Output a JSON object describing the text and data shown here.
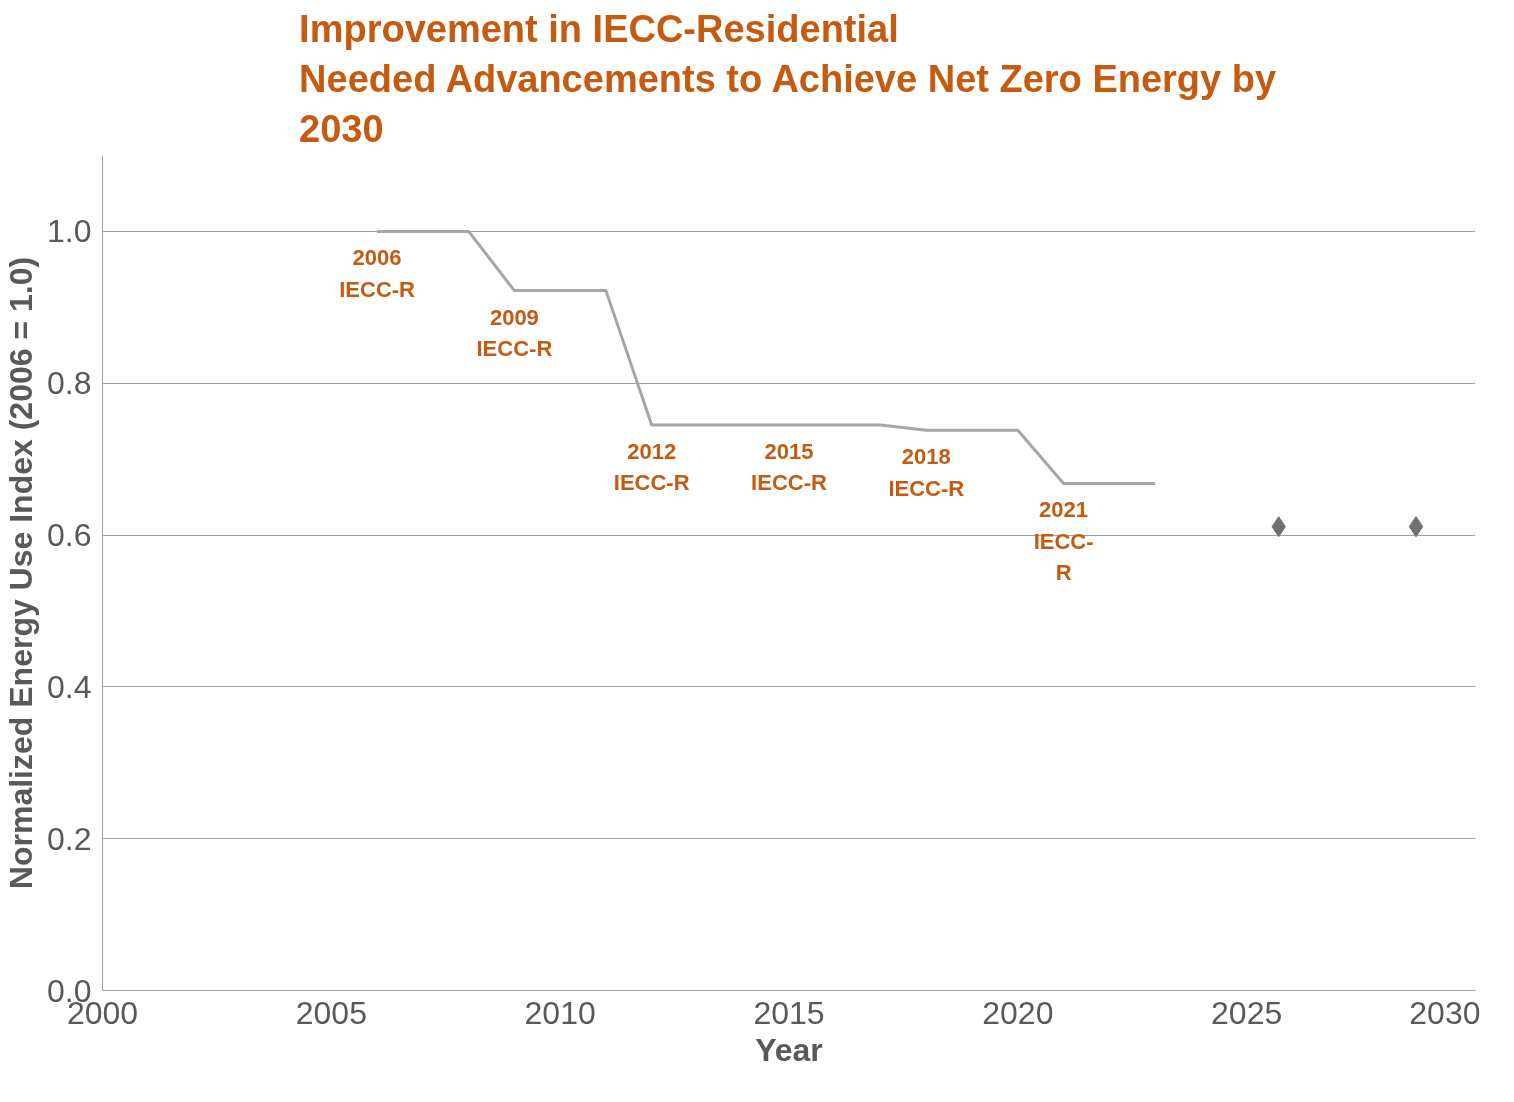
{
  "chart_data": {
    "type": "line",
    "title": "Improvement in IECC-Residential\nNeeded Advancements to Achieve Net Zero Energy by\n2030",
    "xlabel": "Year",
    "ylabel": "Normalized Energy Use Index (2006 = 1.0)",
    "series": [
      {
        "color": "#a6a6a6",
        "x": [
          2006,
          2008,
          2009,
          2011,
          2012,
          2017,
          2018,
          2020,
          2021,
          2023
        ],
        "values": [
          1.0,
          1.0,
          0.922,
          0.922,
          0.745,
          0.745,
          0.738,
          0.738,
          0.668,
          0.668
        ]
      },
      {
        "type": "scatter",
        "color": "#707070",
        "marker": "diamond",
        "x": [
          2025.7,
          2028.7
        ],
        "values": [
          0.611,
          0.611
        ]
      }
    ],
    "annotations": [
      {
        "text": "2006\nIECC-R",
        "x": 2006,
        "y": 1.0
      },
      {
        "text": "2009\nIECC-R",
        "x": 2009,
        "y": 0.922
      },
      {
        "text": "2012\nIECC-R",
        "x": 2012,
        "y": 0.745
      },
      {
        "text": "2015\nIECC-R",
        "x": 2015,
        "y": 0.745
      },
      {
        "text": "2018\nIECC-R",
        "x": 2018,
        "y": 0.738
      },
      {
        "text": "2021\nIECC-\nR",
        "x": 2021,
        "y": 0.668
      }
    ],
    "xlim": [
      2000,
      2030
    ],
    "xticks": [
      2000,
      2005,
      2010,
      2015,
      2020,
      2025,
      2030
    ],
    "ylim": [
      0,
      1.1
    ],
    "yticks": [
      {
        "value": 0,
        "label": "0.0"
      },
      0.2,
      0.4,
      0.6,
      0.8,
      {
        "value": 1,
        "label": "1.0"
      }
    ],
    "grid": "y",
    "marker": "none",
    "line_style": "solid"
  }
}
